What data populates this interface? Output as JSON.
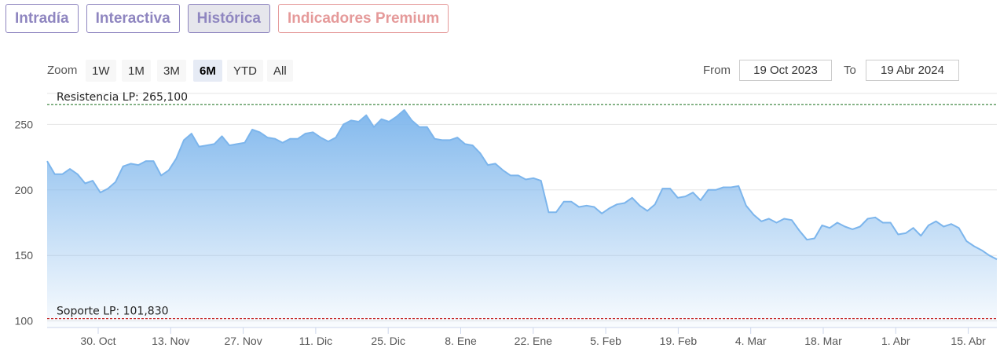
{
  "tabs": [
    {
      "label": "Intradía"
    },
    {
      "label": "Interactiva"
    },
    {
      "label": "Histórica"
    },
    {
      "label": "Indicadores Premium"
    }
  ],
  "range_selector": {
    "zoom_label": "Zoom",
    "buttons": [
      "1W",
      "1M",
      "3M",
      "6M",
      "YTD",
      "All"
    ],
    "selected": "6M",
    "from_label": "From",
    "from_value": "19 Oct 2023",
    "to_label": "To",
    "to_value": "19 Abr 2024"
  },
  "colors": {
    "line": "#7cb5ec",
    "area_top": "#7cb5ec",
    "resistance": "#2e7d32",
    "support": "#c62828",
    "tab_accent": "#8f86c0",
    "premium_accent": "#e59a9a"
  },
  "chart_data": {
    "type": "area",
    "title": "",
    "xlabel": "",
    "ylabel": "",
    "ylim": [
      95,
      270
    ],
    "yticks": [
      100,
      150,
      200,
      250
    ],
    "x_ticks": [
      "30. Oct",
      "13. Nov",
      "27. Nov",
      "11. Dic",
      "25. Dic",
      "8. Ene",
      "22. Ene",
      "5. Feb",
      "19. Feb",
      "4. Mar",
      "18. Mar",
      "1. Abr",
      "15. Abr"
    ],
    "reference_lines": [
      {
        "label": "Resistencia LP: 265,100",
        "value": 265.1
      },
      {
        "label": "Soporte LP: 101,830",
        "value": 101.83
      }
    ],
    "series": [
      {
        "values": [
          222,
          212,
          212,
          216,
          212,
          205,
          207,
          198,
          201,
          206,
          218,
          220,
          219,
          222,
          222,
          211,
          215,
          224,
          238,
          243,
          233,
          234,
          235,
          241,
          234,
          235,
          236,
          246,
          244,
          240,
          239,
          236,
          239,
          239,
          243,
          244,
          240,
          237,
          240,
          250,
          253,
          252,
          257,
          248,
          254,
          252,
          256,
          261,
          253,
          248,
          248,
          239,
          238,
          238,
          240,
          235,
          234,
          228,
          219,
          220,
          215,
          211,
          211,
          208,
          209,
          207,
          183,
          183,
          191,
          191,
          187,
          188,
          187,
          182,
          186,
          189,
          190,
          194,
          188,
          184,
          189,
          201,
          201,
          194,
          195,
          198,
          192,
          200,
          200,
          202,
          202,
          203,
          188,
          181,
          176,
          178,
          175,
          178,
          177,
          169,
          162,
          163,
          173,
          171,
          175,
          172,
          170,
          172,
          178,
          179,
          175,
          175,
          166,
          167,
          171,
          165,
          173,
          176,
          172,
          174,
          171,
          161,
          157,
          154,
          150,
          147
        ]
      }
    ]
  }
}
